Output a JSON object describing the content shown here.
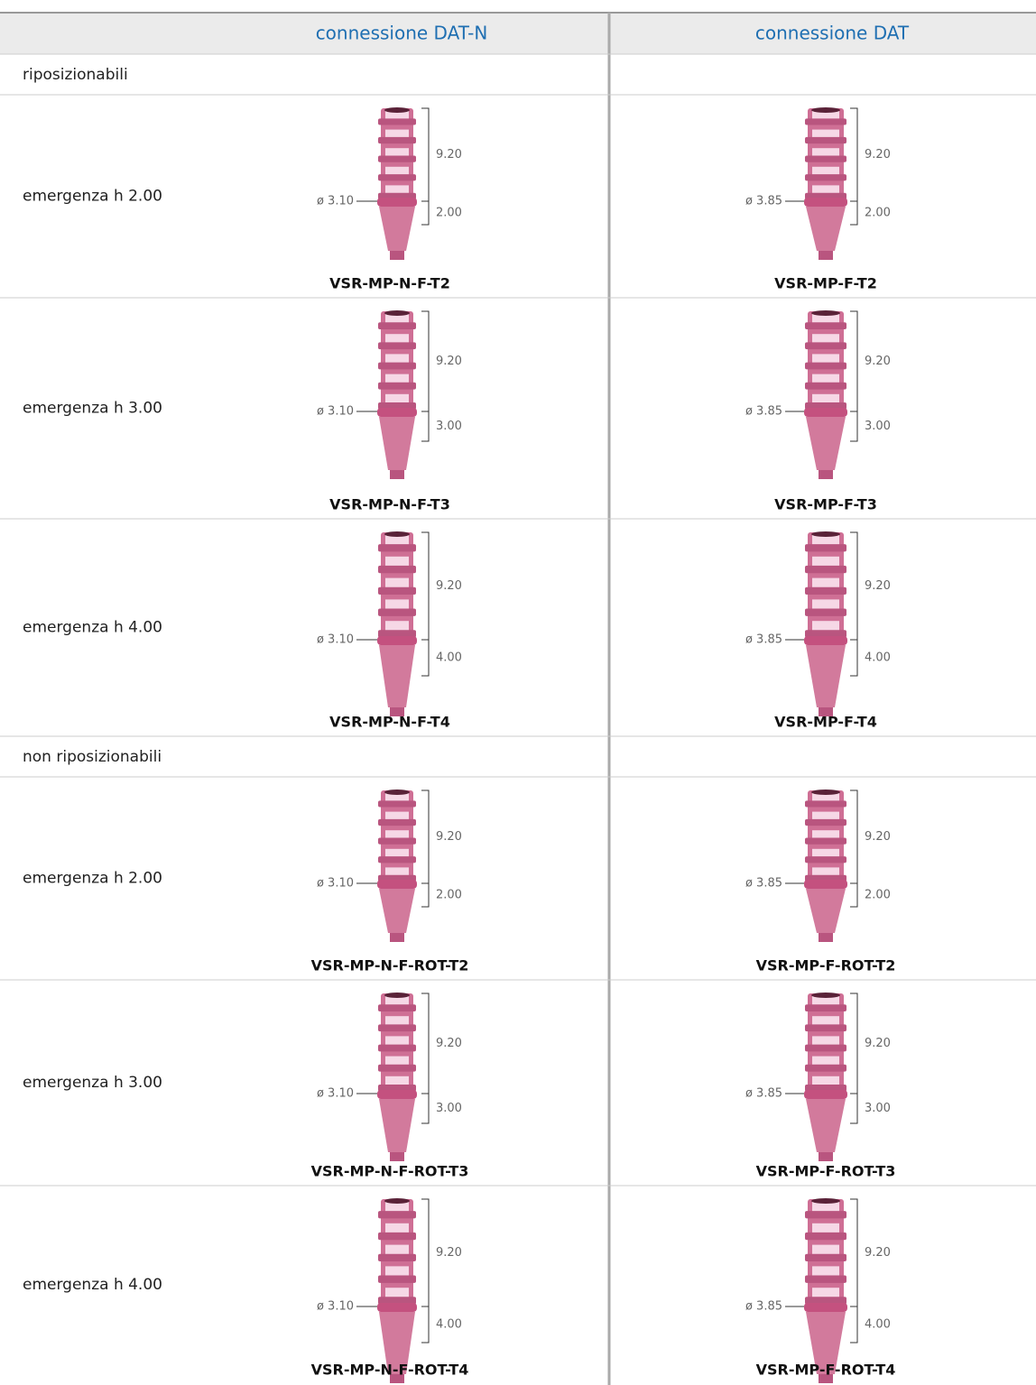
{
  "table": {
    "header": [
      "connessione DAT-N",
      "connessione DAT"
    ],
    "sections": [
      {
        "title": "riposizionabili",
        "rows": [
          {
            "label": "emergenza h 2.00",
            "cells": [
              {
                "diameter": "ø 3.10",
                "height": "9.20",
                "emergence": "2.00",
                "code": "VSR-MP-N-F-T2"
              },
              {
                "diameter": "ø 3.85",
                "height": "9.20",
                "emergence": "2.00",
                "code": "VSR-MP-F-T2"
              }
            ]
          },
          {
            "label": "emergenza h 3.00",
            "cells": [
              {
                "diameter": "ø 3.10",
                "height": "9.20",
                "emergence": "3.00",
                "code": "VSR-MP-N-F-T3"
              },
              {
                "diameter": "ø 3.85",
                "height": "9.20",
                "emergence": "3.00",
                "code": "VSR-MP-F-T3"
              }
            ]
          },
          {
            "label": "emergenza h 4.00",
            "cells": [
              {
                "diameter": "ø 3.10",
                "height": "9.20",
                "emergence": "4.00",
                "code": "VSR-MP-N-F-T4"
              },
              {
                "diameter": "ø 3.85",
                "height": "9.20",
                "emergence": "4.00",
                "code": "VSR-MP-F-T4"
              }
            ]
          }
        ]
      },
      {
        "title": "non riposizionabili",
        "rows": [
          {
            "label": "emergenza h 2.00",
            "cells": [
              {
                "diameter": "ø 3.10",
                "height": "9.20",
                "emergence": "2.00",
                "code": "VSR-MP-N-F-ROT-T2"
              },
              {
                "diameter": "ø 3.85",
                "height": "9.20",
                "emergence": "2.00",
                "code": "VSR-MP-F-ROT-T2"
              }
            ]
          },
          {
            "label": "emergenza h 3.00",
            "cells": [
              {
                "diameter": "ø 3.10",
                "height": "9.20",
                "emergence": "3.00",
                "code": "VSR-MP-N-F-ROT-T3"
              },
              {
                "diameter": "ø 3.85",
                "height": "9.20",
                "emergence": "3.00",
                "code": "VSR-MP-F-ROT-T3"
              }
            ]
          },
          {
            "label": "emergenza h 4.00",
            "cells": [
              {
                "diameter": "ø 3.10",
                "height": "9.20",
                "emergence": "4.00",
                "code": "VSR-MP-N-F-ROT-T4"
              },
              {
                "diameter": "ø 3.85",
                "height": "9.20",
                "emergence": "4.00",
                "code": "VSR-MP-F-ROT-T4"
              }
            ]
          }
        ]
      }
    ]
  }
}
